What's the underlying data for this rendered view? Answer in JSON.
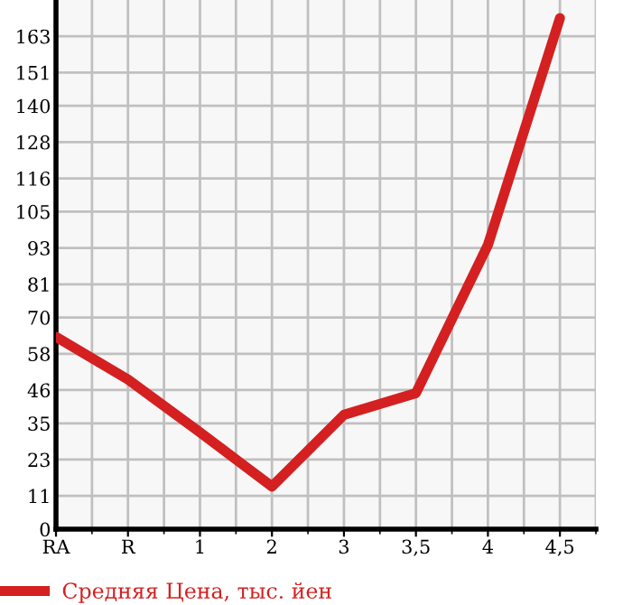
{
  "chart_data": {
    "type": "line",
    "categories": [
      "RA",
      "R",
      "1",
      "2",
      "3",
      "3,5",
      "4",
      "4,5"
    ],
    "series": [
      {
        "name": "Средняя Цена, тыс. йен",
        "color": "#d42020",
        "values": [
          63.6,
          49.5,
          32,
          14.1,
          37.8,
          45,
          94,
          169
        ]
      }
    ],
    "ylim": [
      0,
      175
    ],
    "yticks": [
      0,
      11,
      23,
      35,
      46,
      58,
      70,
      81,
      93,
      105,
      116,
      128,
      140,
      151,
      163
    ],
    "grid": true,
    "legend": "bottom left",
    "marker": "none",
    "line_style": "solid"
  }
}
